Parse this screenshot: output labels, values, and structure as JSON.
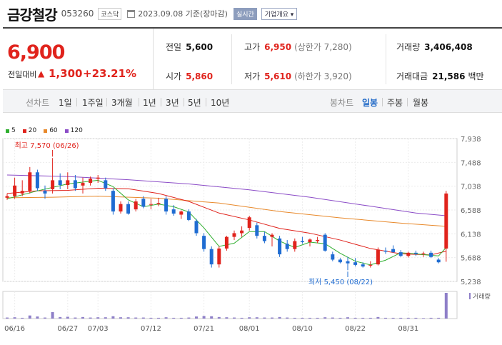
{
  "header": {
    "name": "금강철강",
    "code": "053260",
    "market": "코스닥",
    "date": "2023.09.08 기준(장마감)",
    "live_btn": "실시간",
    "info_btn": "기업개요 ▾"
  },
  "quote": {
    "price": "6,900",
    "change_label": "전일대비",
    "change_arrow": "▲",
    "change": "1,300",
    "change_pct": "+23.21%",
    "prev_label": "전일",
    "prev": "5,600",
    "open_label": "시가",
    "open": "5,860",
    "high_label": "고가",
    "high": "6,950",
    "high_limit": "(상한가 7,280)",
    "low_label": "저가",
    "low": "5,610",
    "low_limit": "(하한가 3,920)",
    "volume_label": "거래량",
    "volume": "3,406,408",
    "amount_label": "거래대금",
    "amount": "21,586",
    "amount_unit": "백만"
  },
  "tabs": {
    "line_label": "선차트",
    "periods": [
      "1일",
      "1주일",
      "3개월",
      "1년",
      "3년",
      "5년",
      "10년"
    ],
    "candle_label": "봉차트",
    "candles": [
      "일봉",
      "주봉",
      "월봉"
    ],
    "selected_candle": "일봉"
  },
  "colors": {
    "up": "#e0231c",
    "down": "#1f6cd2",
    "ma5": "#2eae2e",
    "ma20": "#e0231c",
    "ma60": "#e8892b",
    "ma120": "#8b4cc7"
  },
  "chart_data": {
    "type": "candlestick",
    "legend": [
      {
        "name": "5",
        "color": "#2eae2e"
      },
      {
        "name": "20",
        "color": "#e0231c"
      },
      {
        "name": "60",
        "color": "#e8892b"
      },
      {
        "name": "120",
        "color": "#8b4cc7"
      }
    ],
    "y_ticks": [
      5238,
      5688,
      6138,
      6588,
      7038,
      7488,
      7938
    ],
    "y_tick_labels": [
      "5,238",
      "5,688",
      "6,138",
      "6,588",
      "7,038",
      "7,488",
      "7,938"
    ],
    "ylim": [
      5238,
      7938
    ],
    "x_labels": [
      {
        "i": 1,
        "label": "06/16"
      },
      {
        "i": 8,
        "label": "06/27"
      },
      {
        "i": 12,
        "label": "07/03"
      },
      {
        "i": 19,
        "label": "07/12"
      },
      {
        "i": 26,
        "label": "07/21"
      },
      {
        "i": 32,
        "label": "08/01"
      },
      {
        "i": 39,
        "label": "08/10"
      },
      {
        "i": 46,
        "label": "08/22"
      },
      {
        "i": 53,
        "label": "08/31"
      }
    ],
    "annotations": [
      {
        "i": 6,
        "text": "최고 7,570 (06/26)",
        "value": 7570,
        "type": "high"
      },
      {
        "i": 45,
        "text": "최저 5,450 (08/22)",
        "value": 5450,
        "type": "low"
      }
    ],
    "volume_label": "거래량",
    "candles": [
      {
        "o": 6820,
        "h": 6900,
        "l": 6780,
        "c": 6850,
        "v": 0.04
      },
      {
        "o": 6850,
        "h": 7200,
        "l": 6800,
        "c": 7050,
        "v": 0.05
      },
      {
        "o": 6900,
        "h": 7150,
        "l": 6850,
        "c": 6950,
        "v": 0.03
      },
      {
        "o": 6950,
        "h": 7400,
        "l": 6900,
        "c": 7300,
        "v": 0.12
      },
      {
        "o": 7300,
        "h": 7350,
        "l": 6950,
        "c": 7000,
        "v": 0.08
      },
      {
        "o": 6950,
        "h": 7050,
        "l": 6800,
        "c": 6900,
        "v": 0.04
      },
      {
        "o": 6980,
        "h": 7570,
        "l": 6900,
        "c": 7150,
        "v": 0.25
      },
      {
        "o": 7150,
        "h": 7280,
        "l": 6980,
        "c": 7060,
        "v": 0.06
      },
      {
        "o": 7060,
        "h": 7300,
        "l": 6980,
        "c": 7150,
        "v": 0.07
      },
      {
        "o": 7150,
        "h": 7250,
        "l": 6950,
        "c": 7000,
        "v": 0.04
      },
      {
        "o": 7050,
        "h": 7200,
        "l": 6900,
        "c": 7100,
        "v": 0.06
      },
      {
        "o": 7100,
        "h": 7220,
        "l": 7050,
        "c": 7180,
        "v": 0.04
      },
      {
        "o": 7180,
        "h": 7250,
        "l": 7100,
        "c": 7200,
        "v": 0.05
      },
      {
        "o": 7150,
        "h": 7200,
        "l": 6950,
        "c": 7000,
        "v": 0.05
      },
      {
        "o": 6950,
        "h": 7000,
        "l": 6500,
        "c": 6560,
        "v": 0.09
      },
      {
        "o": 6560,
        "h": 6750,
        "l": 6520,
        "c": 6700,
        "v": 0.05
      },
      {
        "o": 6700,
        "h": 6750,
        "l": 6500,
        "c": 6520,
        "v": 0.05
      },
      {
        "o": 6600,
        "h": 6800,
        "l": 6560,
        "c": 6750,
        "v": 0.04
      },
      {
        "o": 6800,
        "h": 6850,
        "l": 6620,
        "c": 6650,
        "v": 0.04
      },
      {
        "o": 6700,
        "h": 6800,
        "l": 6600,
        "c": 6700,
        "v": 0.03
      },
      {
        "o": 6700,
        "h": 6820,
        "l": 6660,
        "c": 6720,
        "v": 0.03
      },
      {
        "o": 6800,
        "h": 6850,
        "l": 6500,
        "c": 6560,
        "v": 0.05
      },
      {
        "o": 6600,
        "h": 6680,
        "l": 6480,
        "c": 6520,
        "v": 0.03
      },
      {
        "o": 6500,
        "h": 6580,
        "l": 6420,
        "c": 6560,
        "v": 0.03
      },
      {
        "o": 6560,
        "h": 6600,
        "l": 6380,
        "c": 6400,
        "v": 0.04
      },
      {
        "o": 6380,
        "h": 6420,
        "l": 6100,
        "c": 6150,
        "v": 0.08
      },
      {
        "o": 6100,
        "h": 6150,
        "l": 5800,
        "c": 5850,
        "v": 0.1
      },
      {
        "o": 5850,
        "h": 5900,
        "l": 5500,
        "c": 5560,
        "v": 0.09
      },
      {
        "o": 5560,
        "h": 5900,
        "l": 5500,
        "c": 5860,
        "v": 0.06
      },
      {
        "o": 5860,
        "h": 6100,
        "l": 5820,
        "c": 6080,
        "v": 0.05
      },
      {
        "o": 6080,
        "h": 6200,
        "l": 6020,
        "c": 6150,
        "v": 0.04
      },
      {
        "o": 6150,
        "h": 6280,
        "l": 6080,
        "c": 6200,
        "v": 0.03
      },
      {
        "o": 6250,
        "h": 6480,
        "l": 6200,
        "c": 6450,
        "v": 0.05
      },
      {
        "o": 6300,
        "h": 6350,
        "l": 6050,
        "c": 6100,
        "v": 0.05
      },
      {
        "o": 6100,
        "h": 6180,
        "l": 5960,
        "c": 6000,
        "v": 0.04
      },
      {
        "o": 6080,
        "h": 6150,
        "l": 5900,
        "c": 6120,
        "v": 0.04
      },
      {
        "o": 6050,
        "h": 6100,
        "l": 5700,
        "c": 5750,
        "v": 0.06
      },
      {
        "o": 5950,
        "h": 6020,
        "l": 5800,
        "c": 5850,
        "v": 0.04
      },
      {
        "o": 5850,
        "h": 6050,
        "l": 5800,
        "c": 6000,
        "v": 0.03
      },
      {
        "o": 6000,
        "h": 6080,
        "l": 5950,
        "c": 5980,
        "v": 0.03
      },
      {
        "o": 5980,
        "h": 6050,
        "l": 5900,
        "c": 6030,
        "v": 0.03
      },
      {
        "o": 6000,
        "h": 6080,
        "l": 5960,
        "c": 6020,
        "v": 0.03
      },
      {
        "o": 6120,
        "h": 6150,
        "l": 5800,
        "c": 5820,
        "v": 0.05
      },
      {
        "o": 5750,
        "h": 5800,
        "l": 5620,
        "c": 5650,
        "v": 0.04
      },
      {
        "o": 5650,
        "h": 5680,
        "l": 5580,
        "c": 5600,
        "v": 0.03
      },
      {
        "o": 5620,
        "h": 5700,
        "l": 5450,
        "c": 5580,
        "v": 0.05
      },
      {
        "o": 5600,
        "h": 5680,
        "l": 5520,
        "c": 5550,
        "v": 0.03
      },
      {
        "o": 5560,
        "h": 5600,
        "l": 5500,
        "c": 5520,
        "v": 0.03
      },
      {
        "o": 5540,
        "h": 5620,
        "l": 5500,
        "c": 5550,
        "v": 0.03
      },
      {
        "o": 5560,
        "h": 5880,
        "l": 5540,
        "c": 5840,
        "v": 0.06
      },
      {
        "o": 5820,
        "h": 5880,
        "l": 5760,
        "c": 5800,
        "v": 0.03
      },
      {
        "o": 5850,
        "h": 5920,
        "l": 5780,
        "c": 5790,
        "v": 0.03
      },
      {
        "o": 5790,
        "h": 5830,
        "l": 5700,
        "c": 5720,
        "v": 0.03
      },
      {
        "o": 5720,
        "h": 5800,
        "l": 5690,
        "c": 5780,
        "v": 0.03
      },
      {
        "o": 5780,
        "h": 5820,
        "l": 5720,
        "c": 5760,
        "v": 0.03
      },
      {
        "o": 5760,
        "h": 5800,
        "l": 5700,
        "c": 5770,
        "v": 0.02
      },
      {
        "o": 5780,
        "h": 5820,
        "l": 5680,
        "c": 5700,
        "v": 0.03
      },
      {
        "o": 5650,
        "h": 5680,
        "l": 5580,
        "c": 5600,
        "v": 0.03
      },
      {
        "o": 5860,
        "h": 6950,
        "l": 5610,
        "c": 6900,
        "v": 1.0
      }
    ],
    "ma5": [
      [
        0,
        6800
      ],
      [
        4,
        6950
      ],
      [
        8,
        7080
      ],
      [
        12,
        7150
      ],
      [
        14,
        7030
      ],
      [
        16,
        6780
      ],
      [
        18,
        6650
      ],
      [
        20,
        6700
      ],
      [
        22,
        6650
      ],
      [
        24,
        6550
      ],
      [
        26,
        6250
      ],
      [
        28,
        5900
      ],
      [
        30,
        5960
      ],
      [
        32,
        6180
      ],
      [
        34,
        6180
      ],
      [
        36,
        6000
      ],
      [
        38,
        5880
      ],
      [
        40,
        5980
      ],
      [
        42,
        5950
      ],
      [
        44,
        5770
      ],
      [
        46,
        5620
      ],
      [
        48,
        5550
      ],
      [
        50,
        5640
      ],
      [
        52,
        5780
      ],
      [
        54,
        5760
      ],
      [
        56,
        5730
      ],
      [
        57,
        5720
      ],
      [
        58,
        5880
      ]
    ],
    "ma20": [
      [
        0,
        6900
      ],
      [
        4,
        6950
      ],
      [
        8,
        6960
      ],
      [
        12,
        7000
      ],
      [
        16,
        6990
      ],
      [
        20,
        6900
      ],
      [
        24,
        6750
      ],
      [
        28,
        6530
      ],
      [
        32,
        6400
      ],
      [
        36,
        6240
      ],
      [
        40,
        6150
      ],
      [
        44,
        6020
      ],
      [
        48,
        5860
      ],
      [
        52,
        5760
      ],
      [
        56,
        5740
      ],
      [
        58,
        5810
      ]
    ],
    "ma60": [
      [
        0,
        6820
      ],
      [
        6,
        6830
      ],
      [
        12,
        6850
      ],
      [
        20,
        6810
      ],
      [
        28,
        6720
      ],
      [
        36,
        6560
      ],
      [
        44,
        6440
      ],
      [
        52,
        6340
      ],
      [
        58,
        6280
      ]
    ],
    "ma120": [
      [
        0,
        7250
      ],
      [
        8,
        7220
      ],
      [
        16,
        7160
      ],
      [
        24,
        7080
      ],
      [
        32,
        6970
      ],
      [
        40,
        6830
      ],
      [
        48,
        6660
      ],
      [
        54,
        6530
      ],
      [
        58,
        6480
      ]
    ]
  }
}
